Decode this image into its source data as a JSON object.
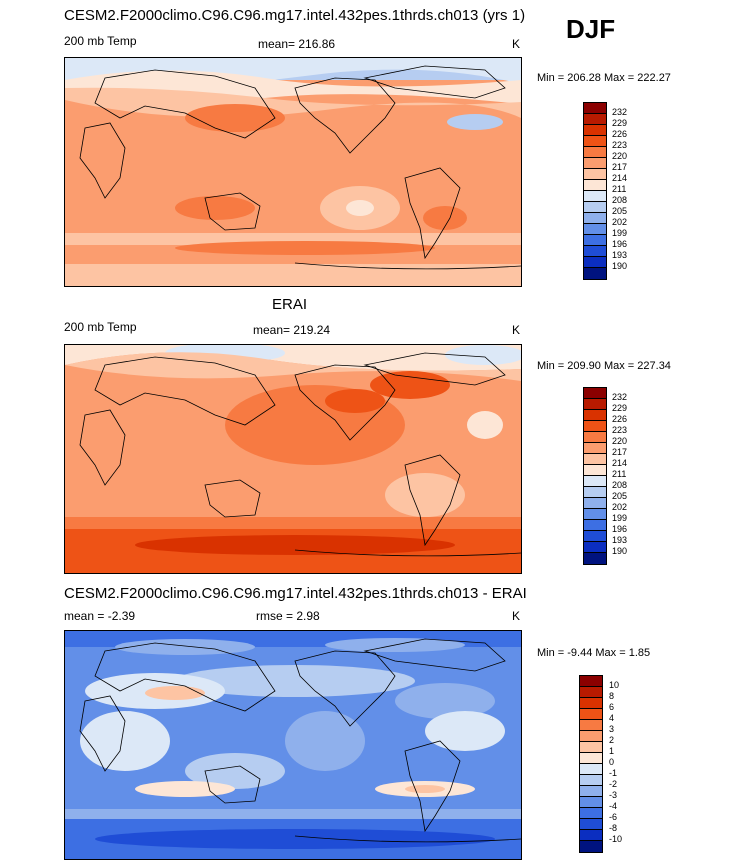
{
  "header": {
    "season": "DJF"
  },
  "panels": [
    {
      "title": "CESM2.F2000climo.C96.C96.mg17.intel.432pes.1thrds.ch013 (yrs 1)",
      "left_label": "200 mb Temp",
      "mid_label": "mean= 216.86",
      "units": "K",
      "minmax": "Min = 206.28 Max = 222.27"
    },
    {
      "title": "ERAI",
      "left_label": "200 mb Temp",
      "mid_label": "mean= 219.24",
      "units": "K",
      "minmax": "Min = 209.90 Max = 227.34"
    },
    {
      "title": "CESM2.F2000climo.C96.C96.mg17.intel.432pes.1thrds.ch013 - ERAI",
      "left_label": "mean =  -2.39",
      "mid_label": "rmse =   2.98",
      "units": "K",
      "minmax": "Min =  -9.44 Max =   1.85"
    }
  ],
  "chart_data": [
    {
      "type": "heatmap",
      "title": "CESM2.F2000climo.C96.C96.mg17.intel.432pes.1thrds.ch013 (yrs 1)",
      "variable": "200 mb Temp",
      "units": "K",
      "mean": 216.86,
      "min": 206.28,
      "max": 222.27,
      "colorbar_levels": [
        232,
        229,
        226,
        223,
        220,
        217,
        214,
        211,
        208,
        205,
        202,
        199,
        196,
        193,
        190
      ]
    },
    {
      "type": "heatmap",
      "title": "ERAI",
      "variable": "200 mb Temp",
      "units": "K",
      "mean": 219.24,
      "min": 209.9,
      "max": 227.34,
      "colorbar_levels": [
        232,
        229,
        226,
        223,
        220,
        217,
        214,
        211,
        208,
        205,
        202,
        199,
        196,
        193,
        190
      ]
    },
    {
      "type": "heatmap",
      "title": "CESM2.F2000climo.C96.C96.mg17.intel.432pes.1thrds.ch013 - ERAI",
      "units": "K",
      "mean": -2.39,
      "rmse": 2.98,
      "min": -9.44,
      "max": 1.85,
      "colorbar_levels": [
        10,
        8,
        6,
        4,
        3,
        2,
        1,
        0,
        -1,
        -2,
        -3,
        -4,
        -6,
        -8,
        -10
      ]
    }
  ],
  "colors": {
    "scale": [
      "#8b0000",
      "#b81a00",
      "#d93200",
      "#ee5316",
      "#f77a42",
      "#fb9d6f",
      "#fdc4a3",
      "#fde6d6",
      "#dce8f7",
      "#b6cdf1",
      "#8fb0ec",
      "#628fe8",
      "#3d6fe3",
      "#1f4dd6",
      "#0b2ec0",
      "#00137f"
    ]
  }
}
